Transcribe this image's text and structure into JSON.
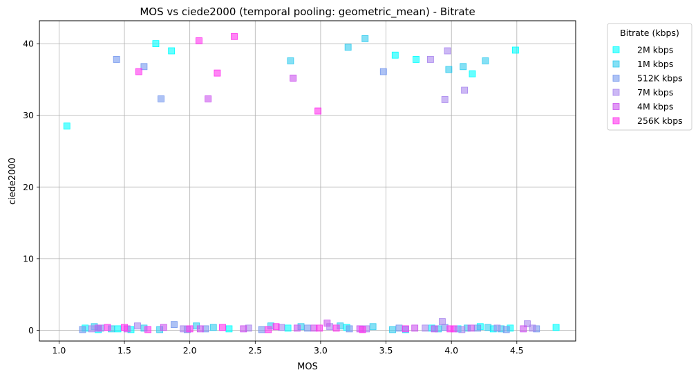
{
  "chart_data": {
    "type": "scatter",
    "title": "MOS vs ciede2000 (temporal pooling: geometric_mean) - Bitrate",
    "xlabel": "MOS",
    "ylabel": "ciede2000",
    "xlim": [
      0.85,
      4.95
    ],
    "ylim": [
      -1.5,
      43.2
    ],
    "xticks": [
      1.0,
      1.5,
      2.0,
      2.5,
      3.0,
      3.5,
      4.0,
      4.5
    ],
    "xtick_labels": [
      "1.0",
      "1.5",
      "2.0",
      "2.5",
      "3.0",
      "3.5",
      "4.0",
      "4.5"
    ],
    "yticks": [
      0,
      10,
      20,
      30,
      40
    ],
    "ytick_labels": [
      "0",
      "10",
      "20",
      "30",
      "40"
    ],
    "grid": true,
    "legend": {
      "title": "Bitrate (kbps)",
      "placement": "outside-top-right"
    },
    "marker": "square",
    "series": [
      {
        "name": "2M kbps",
        "color": "#00ffff",
        "points": [
          [
            1.06,
            28.5
          ],
          [
            1.74,
            40.0
          ],
          [
            1.86,
            39.0
          ],
          [
            3.57,
            38.4
          ],
          [
            3.73,
            37.8
          ],
          [
            4.49,
            39.1
          ],
          [
            4.16,
            35.8
          ],
          [
            4.8,
            0.4
          ],
          [
            1.2,
            0.3
          ],
          [
            1.3,
            0.1
          ],
          [
            1.45,
            0.2
          ],
          [
            1.55,
            0.1
          ],
          [
            2.3,
            0.2
          ],
          [
            2.75,
            0.3
          ],
          [
            3.2,
            0.4
          ],
          [
            3.65,
            0.1
          ],
          [
            3.85,
            0.3
          ],
          [
            4.05,
            0.2
          ],
          [
            4.22,
            0.5
          ],
          [
            4.32,
            0.2
          ],
          [
            4.45,
            0.3
          ]
        ]
      },
      {
        "name": "1M kbps",
        "color": "#33ccee",
        "points": [
          [
            2.77,
            37.6
          ],
          [
            3.21,
            39.5
          ],
          [
            3.34,
            40.7
          ],
          [
            3.98,
            36.4
          ],
          [
            4.09,
            36.8
          ],
          [
            4.26,
            37.6
          ],
          [
            1.27,
            0.5
          ],
          [
            1.4,
            0.2
          ],
          [
            1.65,
            0.3
          ],
          [
            1.77,
            0.1
          ],
          [
            2.05,
            0.6
          ],
          [
            2.18,
            0.4
          ],
          [
            2.62,
            0.6
          ],
          [
            2.85,
            0.5
          ],
          [
            3.15,
            0.6
          ],
          [
            3.4,
            0.5
          ],
          [
            3.55,
            0.1
          ],
          [
            3.9,
            0.2
          ],
          [
            4.12,
            0.3
          ],
          [
            4.28,
            0.4
          ],
          [
            4.38,
            0.2
          ]
        ]
      },
      {
        "name": "512K kbps",
        "color": "#7799ee",
        "points": [
          [
            1.44,
            37.8
          ],
          [
            1.65,
            36.8
          ],
          [
            1.78,
            32.3
          ],
          [
            3.48,
            36.1
          ],
          [
            1.18,
            0.1
          ],
          [
            1.32,
            0.3
          ],
          [
            1.88,
            0.8
          ],
          [
            1.98,
            0.1
          ],
          [
            2.12,
            0.2
          ],
          [
            2.55,
            0.1
          ],
          [
            2.9,
            0.3
          ],
          [
            3.22,
            0.2
          ],
          [
            3.6,
            0.3
          ],
          [
            3.95,
            0.4
          ],
          [
            4.2,
            0.3
          ],
          [
            4.42,
            0.1
          ],
          [
            4.65,
            0.2
          ]
        ]
      },
      {
        "name": "7M kbps",
        "color": "#aa88ee",
        "points": [
          [
            3.84,
            37.8
          ],
          [
            3.97,
            39.0
          ],
          [
            3.95,
            32.2
          ],
          [
            4.1,
            33.5
          ],
          [
            1.25,
            0.2
          ],
          [
            1.6,
            0.6
          ],
          [
            1.95,
            0.2
          ],
          [
            2.45,
            0.3
          ],
          [
            2.7,
            0.4
          ],
          [
            3.07,
            0.5
          ],
          [
            3.35,
            0.2
          ],
          [
            3.8,
            0.3
          ],
          [
            3.93,
            1.2
          ],
          [
            4.08,
            0.1
          ],
          [
            4.35,
            0.3
          ],
          [
            4.58,
            0.9
          ],
          [
            4.62,
            0.3
          ]
        ]
      },
      {
        "name": "4M kbps",
        "color": "#cc55ee",
        "points": [
          [
            2.14,
            32.3
          ],
          [
            2.79,
            35.2
          ],
          [
            1.3,
            0.3
          ],
          [
            1.52,
            0.2
          ],
          [
            1.8,
            0.4
          ],
          [
            2.08,
            0.2
          ],
          [
            2.41,
            0.2
          ],
          [
            2.82,
            0.3
          ],
          [
            2.95,
            0.3
          ],
          [
            3.05,
            1.0
          ],
          [
            3.3,
            0.2
          ],
          [
            3.72,
            0.3
          ],
          [
            3.87,
            0.2
          ],
          [
            4.15,
            0.3
          ],
          [
            4.55,
            0.2
          ]
        ]
      },
      {
        "name": "256K kbps",
        "color": "#ff33ee",
        "points": [
          [
            1.61,
            36.1
          ],
          [
            2.07,
            40.4
          ],
          [
            2.21,
            35.9
          ],
          [
            2.34,
            41.0
          ],
          [
            2.98,
            30.6
          ],
          [
            1.37,
            0.4
          ],
          [
            1.5,
            0.4
          ],
          [
            1.68,
            0.1
          ],
          [
            2.0,
            0.2
          ],
          [
            2.25,
            0.4
          ],
          [
            2.6,
            0.1
          ],
          [
            2.66,
            0.5
          ],
          [
            2.99,
            0.3
          ],
          [
            3.12,
            0.3
          ],
          [
            3.32,
            0.1
          ],
          [
            3.65,
            0.2
          ],
          [
            3.99,
            0.2
          ],
          [
            4.02,
            0.2
          ]
        ]
      }
    ]
  }
}
